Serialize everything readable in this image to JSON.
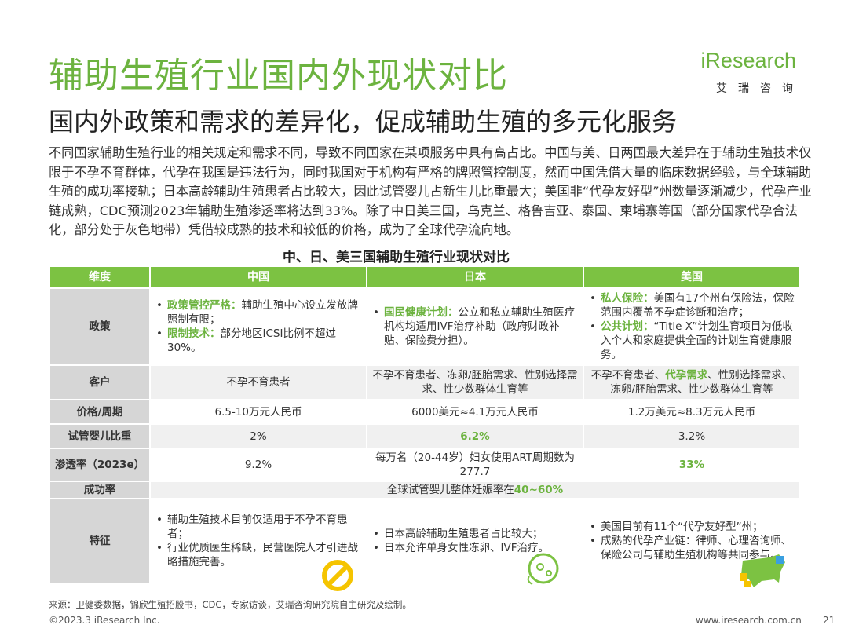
{
  "header": {
    "title": "辅助生殖行业国内外现状对比",
    "logo": "iResearch",
    "logo_sub": "艾瑞咨询"
  },
  "subtitle": "国内外政策和需求的差异化，促成辅助生殖的多元化服务",
  "body": "不同国家辅助生殖行业的相关规定和需求不同，导致不同国家在某项服务中具有高占比。中国与美、日两国最大差异在于辅助生殖技术仅限于不孕不育群体，代孕在我国是违法行为，同时我国对于机构有严格的牌照管控制度，然而中国凭借大量的临床数据经验，与全球辅助生殖的成功率接轨；日本高龄辅助生殖患者占比较大，因此试管婴儿占新生儿比重最大；美国非“代孕友好型”州数量逐渐减少，代孕产业链成熟，CDC预测2023年辅助生殖渗透率将达到33%。除了中日美三国，乌克兰、格鲁吉亚、泰国、柬埔寨等国（部分国家代孕合法化，部分处于灰色地带）凭借较成熟的技术和较低的价格，成为了全球代孕流向地。",
  "table": {
    "title": "中、日、美三国辅助生殖行业现状对比",
    "headers": [
      "维度",
      "中国",
      "日本",
      "美国"
    ],
    "rows": [
      {
        "label": "政策",
        "cells": [
          [
            {
              "bullet": true,
              "runs": [
                {
                  "text": "政策管控严格：",
                  "hl": true
                },
                {
                  "text": "辅助生殖中心设立发放牌照制有限；"
                }
              ]
            },
            {
              "bullet": true,
              "runs": [
                {
                  "text": "限制技术：",
                  "hl": true
                },
                {
                  "text": "部分地区ICSI比例不超过30%。"
                }
              ]
            }
          ],
          [
            {
              "bullet": true,
              "runs": [
                {
                  "text": "国民健康计划：",
                  "hl": true
                },
                {
                  "text": "公立和私立辅助生殖医疗机构均适用IVF治疗补助（政府财政补贴、保险费分担）。"
                }
              ]
            }
          ],
          [
            {
              "bullet": true,
              "runs": [
                {
                  "text": "私人保险：",
                  "hl": true
                },
                {
                  "text": "美国有17个州有保险法，保险范围内覆盖不孕症诊断和治疗；"
                }
              ]
            },
            {
              "bullet": true,
              "runs": [
                {
                  "text": "公共计划：",
                  "hl": true
                },
                {
                  "text": "“Title X”计划生育项目为低收入个人和家庭提供全面的计划生育健康服务。"
                }
              ]
            }
          ]
        ]
      },
      {
        "label": "客户",
        "cells": [
          [
            {
              "runs": [
                {
                  "text": "不孕不育患者"
                }
              ]
            }
          ],
          [
            {
              "runs": [
                {
                  "text": "不孕不育患者、冻卵/胚胎需求、性别选择需求、性少数群体生育等"
                }
              ]
            }
          ],
          [
            {
              "runs": [
                {
                  "text": "不孕不育患者、"
                },
                {
                  "text": "代孕需求",
                  "hl": true
                },
                {
                  "text": "、性别选择需求、冻卵/胚胎需求、性少数群体生育等"
                }
              ]
            }
          ]
        ]
      },
      {
        "label": "价格/周期",
        "cells": [
          [
            {
              "runs": [
                {
                  "text": "6.5-10万元人民币"
                }
              ]
            }
          ],
          [
            {
              "runs": [
                {
                  "text": "6000美元≈4.1万元人民币"
                }
              ]
            }
          ],
          [
            {
              "runs": [
                {
                  "text": "1.2万美元≈8.3万元人民币"
                }
              ]
            }
          ]
        ]
      },
      {
        "label": "试管婴儿比重",
        "cells": [
          [
            {
              "runs": [
                {
                  "text": "2%"
                }
              ]
            }
          ],
          [
            {
              "runs": [
                {
                  "text": "6.2%",
                  "hl": true
                }
              ]
            }
          ],
          [
            {
              "runs": [
                {
                  "text": "3.2%"
                }
              ]
            }
          ]
        ]
      },
      {
        "label": "渗透率（2023e）",
        "cells": [
          [
            {
              "runs": [
                {
                  "text": "9.2%"
                }
              ]
            }
          ],
          [
            {
              "runs": [
                {
                  "text": "每万名（20-44岁）妇女使用ART周期数为277.7"
                }
              ]
            }
          ],
          [
            {
              "runs": [
                {
                  "text": "33%",
                  "hl": true
                }
              ]
            }
          ]
        ]
      },
      {
        "label": "成功率",
        "cells": [
          [
            {
              "runs": [
                {
                  "text": "全球试管婴儿整体妊娠率在"
                },
                {
                  "text": "40~60%",
                  "hl": true
                }
              ]
            }
          ]
        ]
      },
      {
        "label": "特征",
        "cells": [
          [
            {
              "bullet": true,
              "runs": [
                {
                  "text": "辅助生殖技术目前仅适用于不孕不育患者；"
                }
              ]
            },
            {
              "bullet": true,
              "runs": [
                {
                  "text": "行业优质医生稀缺，民营医院人才引进战略措施完善。"
                }
              ]
            }
          ],
          [
            {
              "bullet": true,
              "runs": [
                {
                  "text": "日本高龄辅助生殖患者占比较大；"
                }
              ]
            },
            {
              "bullet": true,
              "runs": [
                {
                  "text": "日本允许单身女性冻卵、IVF治疗。"
                }
              ]
            }
          ],
          [
            {
              "bullet": true,
              "runs": [
                {
                  "text": "美国目前有11个“代孕友好型”州；"
                }
              ]
            },
            {
              "bullet": true,
              "runs": [
                {
                  "text": "成熟的代孕产业链：律师、心理咨询师、保险公司与辅助生殖机构等共同参与。"
                }
              ]
            }
          ]
        ]
      }
    ]
  },
  "footer": {
    "source": "来源：卫健委数据，锦欣生殖招股书，CDC，专家访谈，艾瑞咨询研究院自主研究及绘制。",
    "copyright": "©2023.3 iResearch Inc.",
    "url": "www.iresearch.com.cn",
    "page": "21"
  }
}
